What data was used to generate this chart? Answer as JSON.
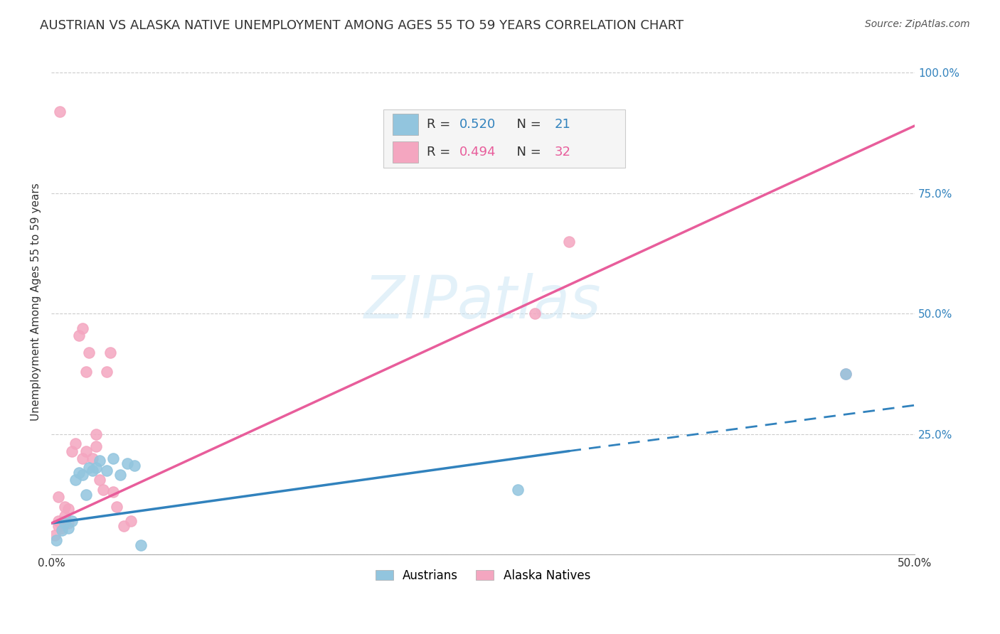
{
  "title": "AUSTRIAN VS ALASKA NATIVE UNEMPLOYMENT AMONG AGES 55 TO 59 YEARS CORRELATION CHART",
  "source": "Source: ZipAtlas.com",
  "ylabel": "Unemployment Among Ages 55 to 59 years",
  "xlim": [
    0.0,
    0.5
  ],
  "ylim": [
    0.0,
    1.05
  ],
  "yticks": [
    0.0,
    0.25,
    0.5,
    0.75,
    1.0
  ],
  "ytick_labels": [
    "",
    "25.0%",
    "50.0%",
    "75.0%",
    "100.0%"
  ],
  "background_color": "#ffffff",
  "watermark": "ZIPatlas",
  "legend_R_austrians": "0.520",
  "legend_N_austrians": "21",
  "legend_R_alaska": "0.494",
  "legend_N_alaska": "32",
  "austrians_color": "#92c5de",
  "alaska_color": "#f4a6c0",
  "trendline_austrians_color": "#3182bd",
  "trendline_alaska_color": "#e85d9b",
  "austrians_x": [
    0.003,
    0.006,
    0.008,
    0.01,
    0.012,
    0.014,
    0.016,
    0.018,
    0.02,
    0.022,
    0.024,
    0.026,
    0.028,
    0.032,
    0.036,
    0.04,
    0.044,
    0.048,
    0.052,
    0.27,
    0.46
  ],
  "austrians_y": [
    0.03,
    0.05,
    0.065,
    0.055,
    0.07,
    0.155,
    0.17,
    0.165,
    0.125,
    0.18,
    0.175,
    0.18,
    0.195,
    0.175,
    0.2,
    0.165,
    0.19,
    0.185,
    0.02,
    0.135,
    0.375
  ],
  "alaska_x": [
    0.002,
    0.004,
    0.004,
    0.005,
    0.006,
    0.008,
    0.008,
    0.01,
    0.01,
    0.012,
    0.014,
    0.016,
    0.018,
    0.018,
    0.02,
    0.02,
    0.022,
    0.024,
    0.026,
    0.026,
    0.028,
    0.03,
    0.032,
    0.034,
    0.036,
    0.038,
    0.042,
    0.046,
    0.004,
    0.28,
    0.3,
    0.46
  ],
  "alaska_y": [
    0.04,
    0.06,
    0.07,
    0.92,
    0.055,
    0.08,
    0.1,
    0.065,
    0.095,
    0.215,
    0.23,
    0.455,
    0.47,
    0.2,
    0.215,
    0.38,
    0.42,
    0.2,
    0.225,
    0.25,
    0.155,
    0.135,
    0.38,
    0.42,
    0.13,
    0.1,
    0.06,
    0.07,
    0.12,
    0.5,
    0.65,
    0.375
  ],
  "marker_size": 120,
  "trendline_austrians": [
    0.0,
    0.065,
    0.3,
    0.215
  ],
  "trendline_austrians_dash": [
    0.3,
    0.215,
    0.5,
    0.31
  ],
  "trendline_alaska": [
    0.0,
    0.065,
    0.5,
    0.89
  ],
  "title_fontsize": 13,
  "source_fontsize": 10,
  "axis_label_fontsize": 11,
  "tick_fontsize": 11,
  "legend_fontsize": 13
}
